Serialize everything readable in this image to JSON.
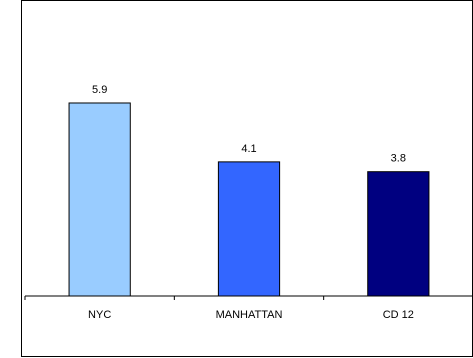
{
  "chart_data": {
    "type": "bar",
    "categories": [
      "NYC",
      "MANHATTAN",
      "CD 12"
    ],
    "values": [
      5.9,
      4.1,
      3.8
    ],
    "colors": [
      "#99ccff",
      "#3366ff",
      "#000080"
    ],
    "ylim": [
      0,
      7
    ]
  }
}
